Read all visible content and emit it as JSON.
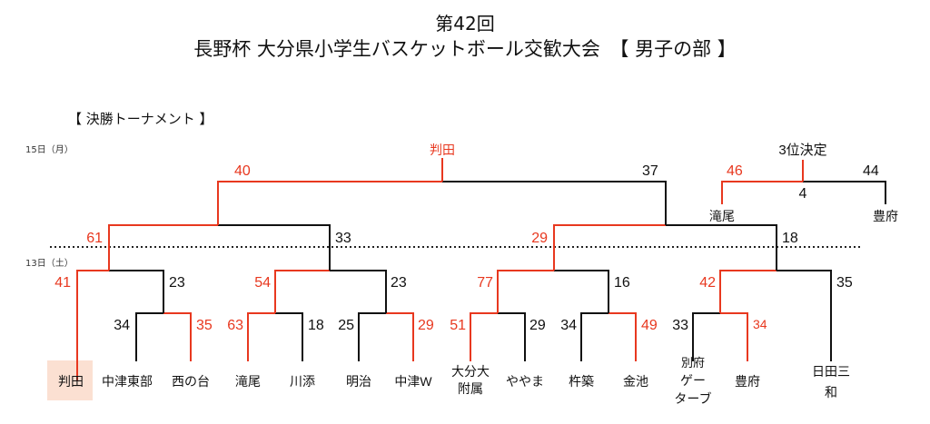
{
  "header": {
    "title_line1": "第42回",
    "title_line2": "長野杯 大分県小学生バスケットボール交歓大会　【 男子の部 】",
    "section_label": "【 決勝トーナメント 】",
    "date_day15": "15日（月）",
    "date_day13": "13日（土）"
  },
  "colors": {
    "winner": "#e8381f",
    "loser": "#111111",
    "winner_bg": "#fbe0d2"
  },
  "teams": [
    {
      "name": "判田",
      "line2": ""
    },
    {
      "name": "中津東部",
      "line2": ""
    },
    {
      "name": "西の台",
      "line2": ""
    },
    {
      "name": "滝尾",
      "line2": ""
    },
    {
      "name": "川添",
      "line2": ""
    },
    {
      "name": "明治",
      "line2": ""
    },
    {
      "name": "中津W",
      "line2": ""
    },
    {
      "name": "大分大",
      "line2": "附属"
    },
    {
      "name": "ややま",
      "line2": ""
    },
    {
      "name": "杵築",
      "line2": ""
    },
    {
      "name": "金池",
      "line2": ""
    },
    {
      "name": "別府",
      "line2": "ゲー",
      "line3": "ターブ"
    },
    {
      "name": "豊府",
      "line2": ""
    },
    {
      "name": "日田三",
      "line2": "和"
    }
  ],
  "scores": {
    "r1": {
      "s1": "34",
      "s2": "35",
      "s3": "63",
      "s4": "18",
      "s5": "25",
      "s6": "29",
      "s7": "51",
      "s8": "29",
      "s9": "34",
      "s10": "49",
      "s11": "33",
      "s12": "34"
    },
    "r2": {
      "a1": "41",
      "a2": "23",
      "b1": "54",
      "b2": "23",
      "c1": "77",
      "c2": "16",
      "d1": "42",
      "d2": "35"
    },
    "sf": {
      "l1": "61",
      "l2": "33",
      "r1": "29",
      "r2": "18"
    },
    "final": {
      "left": "40",
      "right": "37",
      "champion": "判田"
    },
    "third": {
      "title": "3位決定",
      "left": "46",
      "mid": "4",
      "right": "44",
      "left_team": "滝尾",
      "right_team": "豊府"
    }
  }
}
